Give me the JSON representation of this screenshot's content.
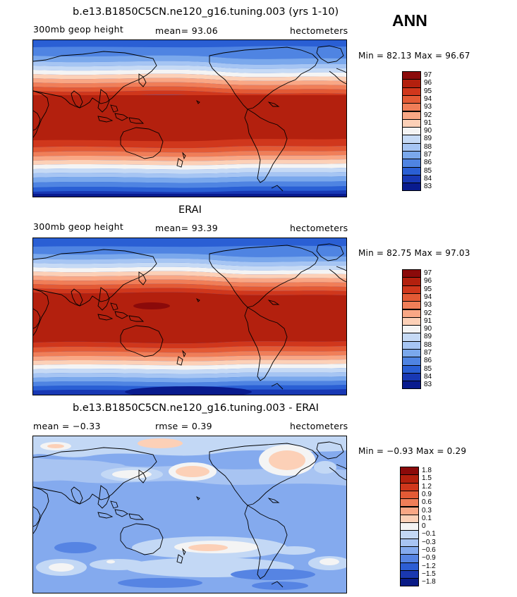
{
  "season": "ANN",
  "panels": [
    {
      "title": "b.e13.B1850C5CN.ne120_g16.tuning.003 (yrs 1-10)",
      "left_label": "300mb geop height",
      "center_label": "mean=   93.06",
      "units": "hectometers",
      "minmax": "Min =   82.13 Max =   96.67",
      "colorbar": {
        "levels": [
          "97",
          "96",
          "95",
          "94",
          "93",
          "92",
          "91",
          "90",
          "89",
          "88",
          "87",
          "86",
          "85",
          "84",
          "83"
        ]
      }
    },
    {
      "title": "ERAI",
      "left_label": "300mb geop height",
      "center_label": "mean=   93.39",
      "units": "hectometers",
      "minmax": "Min =   82.75 Max =   97.03",
      "colorbar": {
        "levels": [
          "97",
          "96",
          "95",
          "94",
          "93",
          "92",
          "91",
          "90",
          "89",
          "88",
          "87",
          "86",
          "85",
          "84",
          "83"
        ]
      }
    },
    {
      "title": "b.e13.B1850C5CN.ne120_g16.tuning.003 - ERAI",
      "left_label": "mean =   −0.33",
      "center_label": "rmse =    0.39",
      "units": "hectometers",
      "minmax": "Min =   −0.93 Max =    0.29",
      "colorbar": {
        "levels": [
          "1.8",
          "1.5",
          "1.2",
          "0.9",
          "0.6",
          "0.3",
          "0.1",
          "0",
          "−0.1",
          "−0.3",
          "−0.6",
          "−0.9",
          "−1.2",
          "−1.5",
          "−1.8"
        ]
      }
    }
  ],
  "colors": {
    "field_scale": [
      "#8b0a0a",
      "#b3200e",
      "#d0371c",
      "#e35a35",
      "#f07e58",
      "#f9a785",
      "#fcd0b7",
      "#f4f4f4",
      "#c6daf5",
      "#a6c5f3",
      "#7aa8ec",
      "#4f84e2",
      "#2a5fd4",
      "#1838b4",
      "#091b8e"
    ],
    "anomaly_scale": [
      "#8b0a0a",
      "#b3200e",
      "#d0371c",
      "#e35a35",
      "#f07e58",
      "#f9a785",
      "#fcd0b7",
      "#f4f4f4",
      "#c3d8f5",
      "#a8c4f2",
      "#84aaee",
      "#5684e3",
      "#2d5ed4",
      "#1a38b0",
      "#0a1b86"
    ]
  }
}
